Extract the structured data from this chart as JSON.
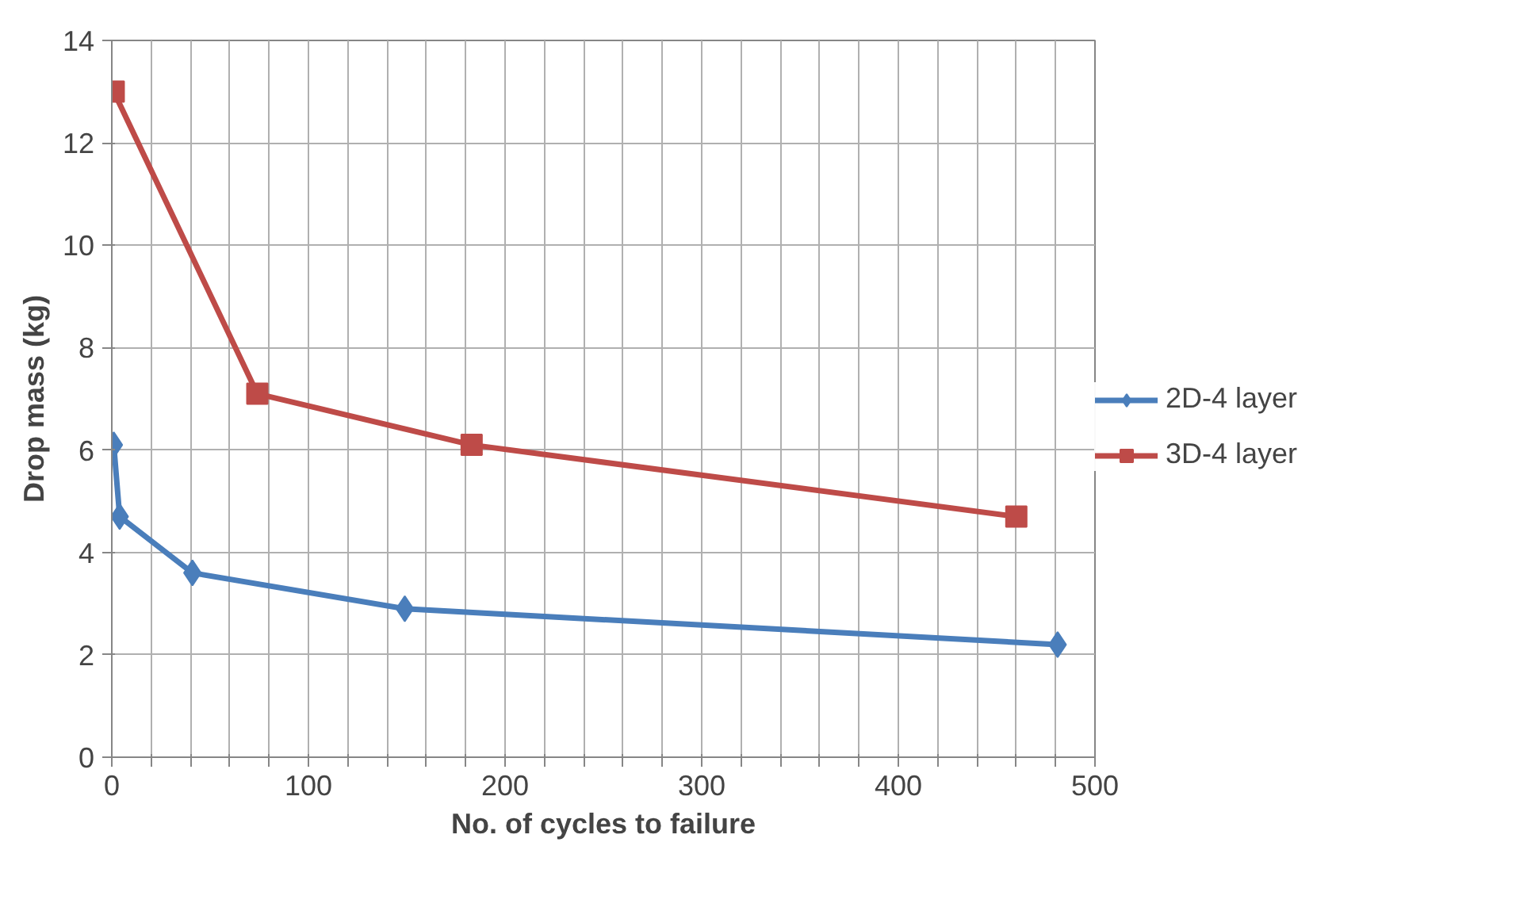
{
  "chart_data": {
    "type": "line",
    "xlabel": "No. of cycles to failure",
    "ylabel": "Drop mass (kg)",
    "series": [
      {
        "name": "2D-4 layer",
        "color": "#4a7ebb",
        "marker": "diamond",
        "x": [
          1,
          4,
          41,
          149,
          481
        ],
        "values": [
          6.1,
          4.7,
          3.6,
          2.9,
          2.2
        ]
      },
      {
        "name": "3D-4 layer",
        "color": "#be4b48",
        "marker": "square",
        "x": [
          1,
          74,
          183,
          460
        ],
        "values": [
          13,
          7.1,
          6.1,
          4.7
        ]
      }
    ],
    "xlim": [
      0,
      500
    ],
    "ylim": [
      0,
      14
    ],
    "xticks": [
      0,
      {
        "value": 20,
        "label": null
      },
      {
        "value": 40,
        "label": null
      },
      {
        "value": 60,
        "label": null
      },
      {
        "value": 80,
        "label": null
      },
      100,
      {
        "value": 120,
        "label": null
      },
      {
        "value": 140,
        "label": null
      },
      {
        "value": 160,
        "label": null
      },
      {
        "value": 180,
        "label": null
      },
      200,
      {
        "value": 220,
        "label": null
      },
      {
        "value": 240,
        "label": null
      },
      {
        "value": 260,
        "label": null
      },
      {
        "value": 280,
        "label": null
      },
      300,
      {
        "value": 320,
        "label": null
      },
      {
        "value": 340,
        "label": null
      },
      {
        "value": 360,
        "label": null
      },
      {
        "value": 380,
        "label": null
      },
      400,
      {
        "value": 420,
        "label": null
      },
      {
        "value": 440,
        "label": null
      },
      {
        "value": 460,
        "label": null
      },
      {
        "value": 480,
        "label": null
      },
      500
    ],
    "yticks": [
      0,
      2,
      4,
      6,
      8,
      10,
      12,
      14
    ],
    "grid": true,
    "legend": "right",
    "line_style": "solid"
  }
}
